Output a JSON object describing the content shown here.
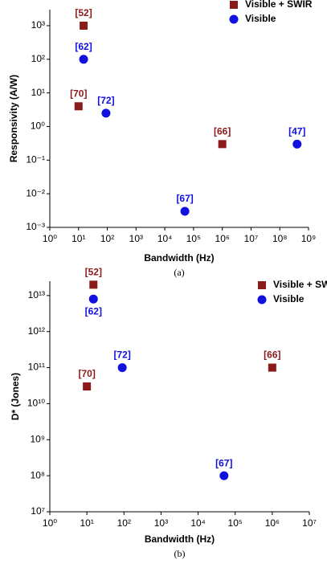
{
  "chart_data": [
    {
      "type": "scatter",
      "xlabel": "Bandwidth (Hz)",
      "ylabel": "Responsivity (A/W)",
      "caption": "(a)",
      "xscale": "log",
      "yscale": "log",
      "grid": false,
      "legend": "upper right",
      "xlim": [
        1,
        1000000000
      ],
      "ylim": [
        0.001,
        3000
      ],
      "xticks": [
        {
          "value": 1,
          "label": "10⁰"
        },
        {
          "value": 10,
          "label": "10¹"
        },
        {
          "value": 100,
          "label": "10²"
        },
        {
          "value": 1000,
          "label": "10³"
        },
        {
          "value": 10000,
          "label": "10⁴"
        },
        {
          "value": 100000,
          "label": "10⁵"
        },
        {
          "value": 1000000,
          "label": "10⁶"
        },
        {
          "value": 10000000,
          "label": "10⁷"
        },
        {
          "value": 100000000,
          "label": "10⁸"
        },
        {
          "value": 1000000000,
          "label": "10⁹"
        }
      ],
      "yticks": [
        {
          "value": 0.001,
          "label": "10⁻³"
        },
        {
          "value": 0.01,
          "label": "10⁻²"
        },
        {
          "value": 0.1,
          "label": "10⁻¹"
        },
        {
          "value": 1,
          "label": "10⁰"
        },
        {
          "value": 10,
          "label": "10¹"
        },
        {
          "value": 100,
          "label": "10²"
        },
        {
          "value": 1000,
          "label": "10³"
        }
      ],
      "series": [
        {
          "name": "Visible + SWIR",
          "marker": "square",
          "color": "#8b1a1a",
          "x": [
            15,
            10,
            1000000
          ],
          "y": [
            1000,
            4,
            0.3
          ],
          "labels": [
            "[52]",
            "[70]",
            "[66]"
          ]
        },
        {
          "name": "Visible",
          "marker": "circle",
          "color": "#1010e0",
          "x": [
            15,
            90,
            50000,
            400000000
          ],
          "y": [
            100,
            2.5,
            0.003,
            0.3
          ],
          "labels": [
            "[62]",
            "[72]",
            "[67]",
            "[47]"
          ]
        }
      ]
    },
    {
      "type": "scatter",
      "xlabel": "Bandwidth (Hz)",
      "ylabel": "D* (Jones)",
      "caption": "(b)",
      "xscale": "log",
      "yscale": "log",
      "grid": false,
      "legend": "upper right",
      "xlim": [
        1,
        10000000
      ],
      "ylim": [
        10000000,
        25000000000000
      ],
      "xticks": [
        {
          "value": 1,
          "label": "10⁰"
        },
        {
          "value": 10,
          "label": "10¹"
        },
        {
          "value": 100,
          "label": "10²"
        },
        {
          "value": 1000,
          "label": "10³"
        },
        {
          "value": 10000,
          "label": "10⁴"
        },
        {
          "value": 100000,
          "label": "10⁵"
        },
        {
          "value": 1000000,
          "label": "10⁶"
        },
        {
          "value": 10000000,
          "label": "10⁷"
        }
      ],
      "yticks": [
        {
          "value": 10000000,
          "label": "10⁷"
        },
        {
          "value": 100000000,
          "label": "10⁸"
        },
        {
          "value": 1000000000,
          "label": "10⁹"
        },
        {
          "value": 10000000000,
          "label": "10¹⁰"
        },
        {
          "value": 100000000000,
          "label": "10¹¹"
        },
        {
          "value": 1000000000000,
          "label": "10¹²"
        },
        {
          "value": 10000000000000,
          "label": "10¹³"
        }
      ],
      "series": [
        {
          "name": "Visible + SWIR",
          "marker": "square",
          "color": "#8b1a1a",
          "x": [
            15,
            10,
            1000000
          ],
          "y": [
            20000000000000,
            30000000000,
            100000000000
          ],
          "labels": [
            "[52]",
            "[70]",
            "[66]"
          ]
        },
        {
          "name": "Visible",
          "marker": "circle",
          "color": "#1010e0",
          "x": [
            15,
            90,
            50000
          ],
          "y": [
            8000000000000,
            100000000000,
            100000000
          ],
          "labels": [
            "[62]",
            "[72]",
            "[67]"
          ]
        }
      ]
    }
  ]
}
